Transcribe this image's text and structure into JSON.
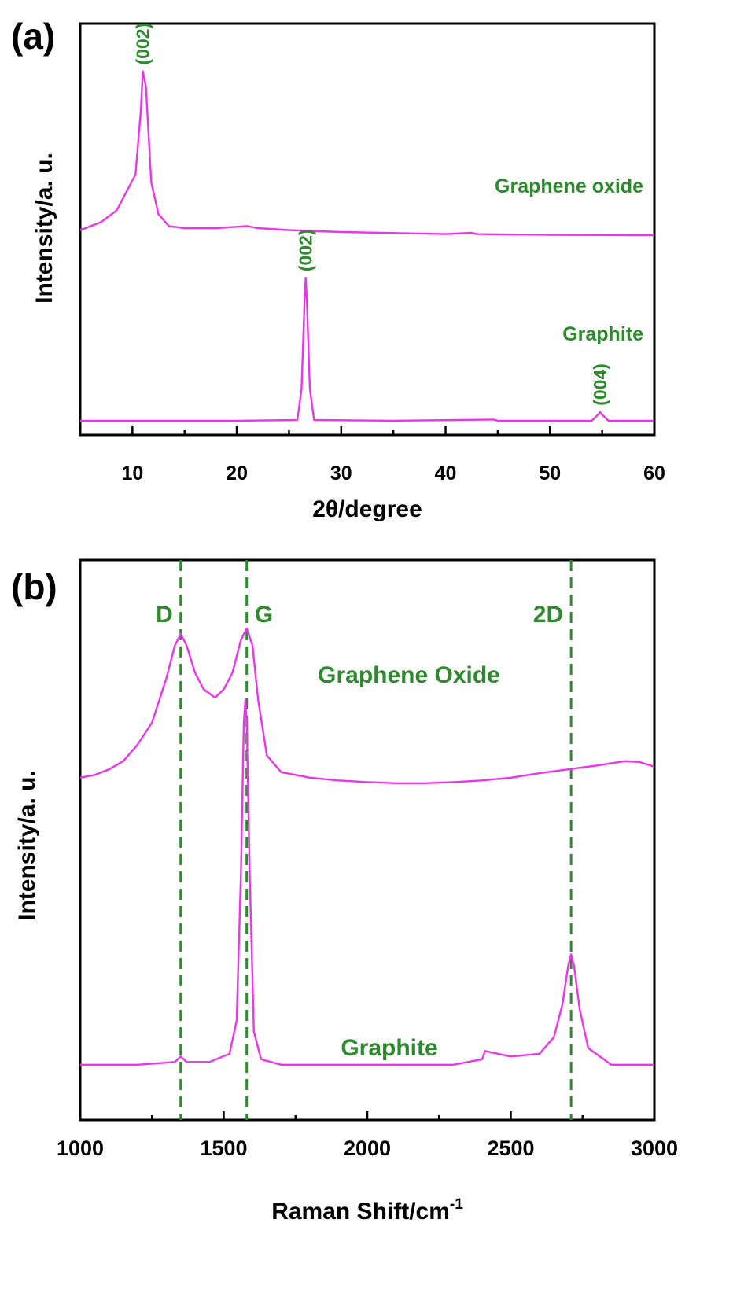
{
  "colors": {
    "series": "#ee33ee",
    "annotation": "#2d8a2d",
    "axis": "#000000"
  },
  "chart_data": [
    {
      "panel": "(a)",
      "type": "line",
      "title": "",
      "xlabel": "2θ/degree",
      "ylabel": "Intensity/a. u.",
      "xlim": [
        5,
        60
      ],
      "xticks": [
        10,
        20,
        30,
        40,
        50,
        60
      ],
      "grid": false,
      "series": [
        {
          "name": "Graphene oxide",
          "x": [
            5,
            7,
            8.5,
            9.5,
            10.3,
            10.8,
            11.0,
            11.3,
            11.8,
            12.5,
            13.5,
            15,
            18,
            21,
            22,
            25,
            30,
            40,
            42.5,
            43,
            50,
            60
          ],
          "y": [
            0.5,
            0.52,
            0.55,
            0.6,
            0.64,
            0.8,
            0.9,
            0.86,
            0.62,
            0.54,
            0.51,
            0.505,
            0.505,
            0.51,
            0.505,
            0.5,
            0.495,
            0.49,
            0.493,
            0.49,
            0.488,
            0.487
          ]
        },
        {
          "name": "Graphite",
          "x": [
            5,
            20,
            25.8,
            26.2,
            26.5,
            26.6,
            26.7,
            27.0,
            27.4,
            35,
            44.6,
            45,
            54,
            54.6,
            54.8,
            55.0,
            55.6,
            60
          ],
          "y": [
            0.02,
            0.02,
            0.022,
            0.1,
            0.33,
            0.38,
            0.33,
            0.1,
            0.022,
            0.02,
            0.023,
            0.02,
            0.02,
            0.035,
            0.042,
            0.035,
            0.02,
            0.02
          ]
        }
      ],
      "annotations": [
        {
          "text": "(002)",
          "series": "Graphene oxide",
          "x": 11.0
        },
        {
          "text": "(002)",
          "series": "Graphite",
          "x": 26.6
        },
        {
          "text": "(004)",
          "series": "Graphite",
          "x": 54.8
        }
      ]
    },
    {
      "panel": "(b)",
      "type": "line",
      "title": "",
      "xlabel": "Raman Shift/cm",
      "xlabel_sup": "-1",
      "ylabel": "Intensity/a. u.",
      "xlim": [
        1000,
        3000
      ],
      "xticks": [
        1000,
        1500,
        2000,
        2500,
        3000
      ],
      "grid": false,
      "reference_lines": [
        {
          "label": "D",
          "x": 1350
        },
        {
          "label": "G",
          "x": 1580
        },
        {
          "label": "2D",
          "x": 2710
        }
      ],
      "series": [
        {
          "name": "Graphene Oxide",
          "x": [
            1000,
            1050,
            1100,
            1150,
            1200,
            1250,
            1300,
            1330,
            1350,
            1370,
            1400,
            1430,
            1470,
            1500,
            1530,
            1560,
            1580,
            1600,
            1620,
            1650,
            1700,
            1800,
            1900,
            2000,
            2100,
            2200,
            2300,
            2400,
            2500,
            2600,
            2700,
            2800,
            2900,
            2950,
            3000
          ],
          "y": [
            0.62,
            0.625,
            0.635,
            0.65,
            0.68,
            0.72,
            0.8,
            0.86,
            0.88,
            0.86,
            0.81,
            0.78,
            0.765,
            0.78,
            0.81,
            0.87,
            0.89,
            0.86,
            0.76,
            0.66,
            0.63,
            0.62,
            0.615,
            0.612,
            0.61,
            0.61,
            0.612,
            0.615,
            0.62,
            0.628,
            0.635,
            0.642,
            0.65,
            0.648,
            0.64
          ]
        },
        {
          "name": "Graphite",
          "x": [
            1000,
            1200,
            1330,
            1350,
            1370,
            1450,
            1520,
            1545,
            1560,
            1570,
            1575,
            1580,
            1590,
            1605,
            1630,
            1700,
            2000,
            2300,
            2400,
            2410,
            2500,
            2600,
            2650,
            2680,
            2700,
            2710,
            2720,
            2740,
            2770,
            2850,
            3000
          ],
          "y": [
            0.1,
            0.1,
            0.105,
            0.115,
            0.105,
            0.105,
            0.12,
            0.18,
            0.45,
            0.72,
            0.76,
            0.72,
            0.45,
            0.16,
            0.11,
            0.1,
            0.1,
            0.1,
            0.11,
            0.125,
            0.115,
            0.12,
            0.15,
            0.21,
            0.28,
            0.3,
            0.28,
            0.2,
            0.13,
            0.1,
            0.1
          ]
        }
      ]
    }
  ]
}
